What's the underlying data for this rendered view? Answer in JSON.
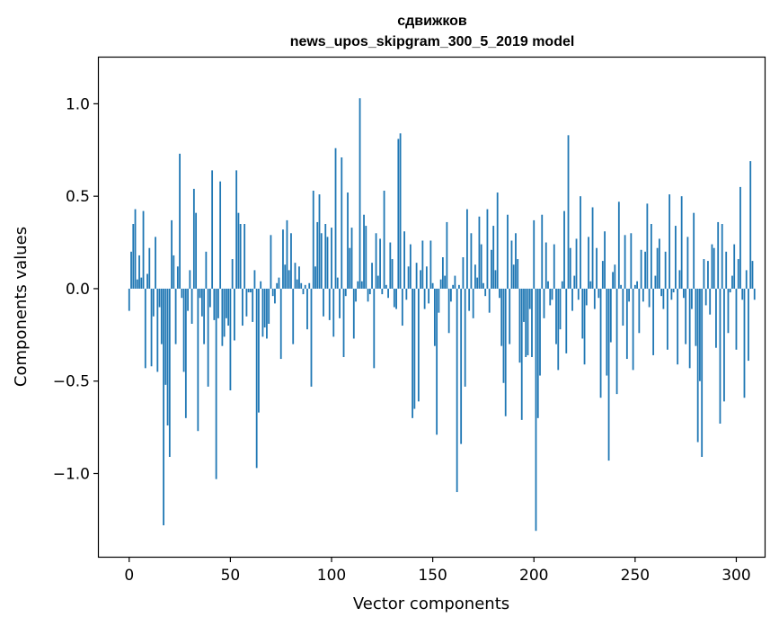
{
  "chart_data": {
    "type": "bar",
    "title_lines": [
      "сдвижков",
      "news_upos_skipgram_300_5_2019 model"
    ],
    "xlabel": "Vector components",
    "ylabel": "Components values",
    "xlim": [
      -15,
      314
    ],
    "ylim": [
      -1.45,
      1.25
    ],
    "x_ticks": [
      0,
      50,
      100,
      150,
      200,
      250,
      300
    ],
    "x_tick_labels": [
      "0",
      "50",
      "100",
      "150",
      "200",
      "250",
      "300"
    ],
    "y_ticks": [
      -1.0,
      -0.5,
      0.0,
      0.5,
      1.0
    ],
    "y_tick_labels": [
      "−1.0",
      "−0.5",
      "0.0",
      "0.5",
      "1.0"
    ],
    "bar_color": "#1f77b4",
    "grid": false,
    "series": [
      {
        "x_start": 0,
        "values": [
          -0.12,
          0.2,
          0.35,
          0.43,
          0.05,
          0.18,
          0.06,
          0.42,
          -0.43,
          0.08,
          0.22,
          -0.42,
          -0.15,
          0.28,
          -0.45,
          -0.1,
          -0.3,
          -1.28,
          -0.52,
          -0.74,
          -0.91,
          0.37,
          0.18,
          -0.3,
          0.12,
          0.73,
          -0.05,
          -0.45,
          -0.7,
          -0.12,
          0.1,
          -0.19,
          0.54,
          0.41,
          -0.77,
          -0.05,
          -0.15,
          -0.3,
          0.2,
          -0.53,
          -0.1,
          0.64,
          -0.17,
          -1.03,
          -0.16,
          0.58,
          -0.31,
          -0.26,
          -0.16,
          -0.2,
          -0.55,
          0.16,
          -0.28,
          0.64,
          0.41,
          0.35,
          -0.2,
          0.35,
          -0.15,
          -0.02,
          -0.02,
          -0.18,
          0.1,
          -0.97,
          -0.67,
          0.04,
          -0.26,
          -0.21,
          -0.27,
          -0.19,
          0.29,
          -0.04,
          -0.08,
          0.03,
          0.06,
          -0.38,
          0.32,
          0.13,
          0.37,
          0.1,
          0.3,
          -0.3,
          0.14,
          0.05,
          0.12,
          0.03,
          -0.03,
          0.02,
          -0.22,
          0.03,
          -0.53,
          0.53,
          0.12,
          0.36,
          0.51,
          0.3,
          -0.15,
          0.35,
          0.28,
          -0.17,
          0.33,
          -0.26,
          0.76,
          0.06,
          -0.16,
          0.71,
          -0.37,
          -0.04,
          0.52,
          0.22,
          0.33,
          -0.27,
          -0.07,
          0.04,
          1.03,
          0.04,
          0.4,
          0.34,
          -0.07,
          -0.03,
          0.14,
          -0.43,
          0.3,
          0.07,
          0.27,
          -0.03,
          0.53,
          0.02,
          -0.05,
          0.25,
          0.16,
          -0.1,
          -0.11,
          0.81,
          0.84,
          -0.2,
          0.31,
          -0.06,
          0.12,
          0.24,
          -0.7,
          -0.65,
          0.14,
          -0.61,
          0.1,
          0.26,
          -0.11,
          0.12,
          -0.08,
          0.26,
          0.03,
          -0.31,
          -0.79,
          -0.13,
          0.05,
          0.17,
          0.07,
          0.36,
          -0.24,
          -0.07,
          0.02,
          0.07,
          -1.1,
          0.02,
          -0.84,
          0.17,
          -0.53,
          0.43,
          -0.12,
          0.3,
          -0.16,
          0.13,
          0.06,
          0.39,
          0.24,
          0.03,
          -0.04,
          0.43,
          -0.13,
          0.21,
          0.34,
          0.1,
          0.52,
          -0.05,
          -0.31,
          -0.51,
          -0.69,
          0.4,
          -0.3,
          0.26,
          0.13,
          0.3,
          0.16,
          -0.4,
          -0.71,
          -0.18,
          -0.37,
          -0.36,
          -0.11,
          -0.37,
          0.37,
          -1.31,
          -0.7,
          -0.47,
          0.4,
          -0.16,
          0.25,
          0.04,
          -0.09,
          -0.06,
          0.24,
          -0.3,
          -0.44,
          -0.22,
          0.04,
          0.42,
          -0.35,
          0.83,
          0.22,
          -0.12,
          0.07,
          0.27,
          -0.06,
          0.5,
          -0.27,
          -0.41,
          -0.09,
          0.28,
          0.04,
          0.44,
          -0.11,
          0.22,
          -0.05,
          -0.59,
          0.15,
          0.31,
          -0.47,
          -0.93,
          -0.29,
          0.09,
          0.13,
          -0.57,
          0.47,
          0.02,
          -0.2,
          0.29,
          -0.38,
          -0.07,
          0.3,
          -0.44,
          0.02,
          0.04,
          -0.24,
          0.21,
          -0.07,
          0.2,
          0.46,
          -0.1,
          0.35,
          -0.36,
          0.07,
          0.22,
          0.27,
          -0.04,
          -0.11,
          0.2,
          -0.33,
          0.51,
          -0.06,
          -0.02,
          0.34,
          -0.41,
          0.1,
          0.5,
          -0.05,
          -0.3,
          0.28,
          -0.43,
          -0.11,
          0.41,
          -0.31,
          -0.83,
          -0.5,
          -0.91,
          0.16,
          -0.09,
          0.15,
          -0.14,
          0.24,
          0.22,
          -0.32,
          0.36,
          -0.73,
          0.35,
          -0.61,
          0.2,
          -0.24,
          -0.02,
          0.07,
          0.24,
          -0.33,
          0.16,
          0.55,
          -0.06,
          -0.59,
          0.1,
          -0.39,
          0.69,
          0.15,
          -0.06
        ]
      }
    ]
  }
}
